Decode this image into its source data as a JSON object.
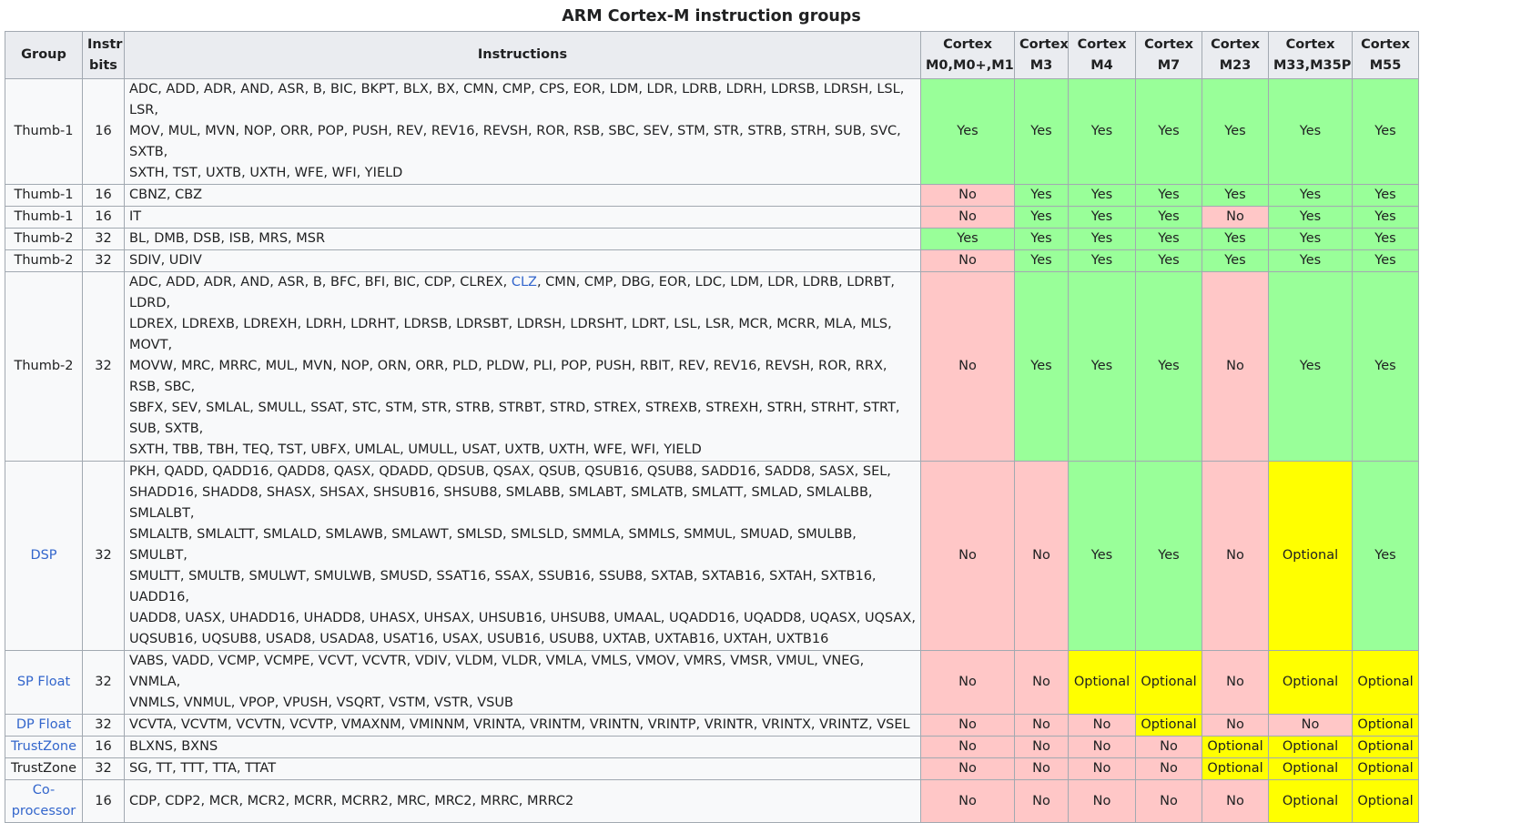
{
  "caption": "ARM Cortex-M instruction groups",
  "colors": {
    "yes": "#99ff99",
    "no": "#ffc7c7",
    "optional": "#ffff00",
    "header": "#eaecf0",
    "link": "#3366cc"
  },
  "headers": {
    "group": "Group",
    "bits": [
      "Instr",
      "bits"
    ],
    "instructions": "Instructions",
    "cores": [
      [
        "Cortex",
        "M0,M0+,M1"
      ],
      [
        "Cortex",
        "M3"
      ],
      [
        "Cortex",
        "M4"
      ],
      [
        "Cortex",
        "M7"
      ],
      [
        "Cortex",
        "M23"
      ],
      [
        "Cortex",
        "M33,M35P"
      ],
      [
        "Cortex",
        "M55"
      ]
    ]
  },
  "rows": [
    {
      "group": "Thumb-1",
      "group_link": false,
      "bits": "16",
      "instructions": [
        {
          "text": "ADC, ADD, ADR, AND, ASR, B, BIC, BKPT, BLX, BX, CMN, CMP, CPS, EOR, LDM, LDR, LDRB, LDRH, LDRSB, LDRSH, LSL, LSR,",
          "link": false
        },
        {
          "text": "MOV, MUL, MVN, NOP, ORR, POP, PUSH, REV, REV16, REVSH, ROR, RSB, SBC, SEV, STM, STR, STRB, STRH, SUB, SVC, SXTB,",
          "link": false
        },
        {
          "text": "SXTH, TST, UXTB, UXTH, WFE, WFI, YIELD",
          "link": false
        }
      ],
      "values": [
        "Yes",
        "Yes",
        "Yes",
        "Yes",
        "Yes",
        "Yes",
        "Yes"
      ]
    },
    {
      "group": "Thumb-1",
      "group_link": false,
      "bits": "16",
      "instructions": [
        {
          "text": "CBNZ, CBZ",
          "link": false
        }
      ],
      "values": [
        "No",
        "Yes",
        "Yes",
        "Yes",
        "Yes",
        "Yes",
        "Yes"
      ]
    },
    {
      "group": "Thumb-1",
      "group_link": false,
      "bits": "16",
      "instructions": [
        {
          "text": "IT",
          "link": false
        }
      ],
      "values": [
        "No",
        "Yes",
        "Yes",
        "Yes",
        "No",
        "Yes",
        "Yes"
      ]
    },
    {
      "group": "Thumb-2",
      "group_link": false,
      "bits": "32",
      "instructions": [
        {
          "text": "BL, DMB, DSB, ISB, MRS, MSR",
          "link": false
        }
      ],
      "values": [
        "Yes",
        "Yes",
        "Yes",
        "Yes",
        "Yes",
        "Yes",
        "Yes"
      ]
    },
    {
      "group": "Thumb-2",
      "group_link": false,
      "bits": "32",
      "instructions": [
        {
          "text": "SDIV, UDIV",
          "link": false
        }
      ],
      "values": [
        "No",
        "Yes",
        "Yes",
        "Yes",
        "Yes",
        "Yes",
        "Yes"
      ]
    },
    {
      "group": "Thumb-2",
      "group_link": false,
      "bits": "32",
      "instructions_segments": [
        [
          {
            "text": "ADC, ADD, ADR, AND, ASR, B, BFC, BFI, BIC, CDP, CLREX, ",
            "link": false
          },
          {
            "text": "CLZ",
            "link": true
          },
          {
            "text": ", CMN, CMP, DBG, EOR, LDC, LDM, LDR, LDRB, LDRBT, LDRD,",
            "link": false
          }
        ],
        [
          {
            "text": "LDREX, LDREXB, LDREXH, LDRH, LDRHT, LDRSB, LDRSBT, LDRSH, LDRSHT, LDRT, LSL, LSR, MCR, MCRR, MLA, MLS, MOVT,",
            "link": false
          }
        ],
        [
          {
            "text": "MOVW, MRC, MRRC, MUL, MVN, NOP, ORN, ORR, PLD, PLDW, PLI, POP, PUSH, RBIT, REV, REV16, REVSH, ROR, RRX, RSB, SBC,",
            "link": false
          }
        ],
        [
          {
            "text": "SBFX, SEV, SMLAL, SMULL, SSAT, STC, STM, STR, STRB, STRBT, STRD, STREX, STREXB, STREXH, STRH, STRHT, STRT, SUB, SXTB,",
            "link": false
          }
        ],
        [
          {
            "text": "SXTH, TBB, TBH, TEQ, TST, UBFX, UMLAL, UMULL, USAT, UXTB, UXTH, WFE, WFI, YIELD",
            "link": false
          }
        ]
      ],
      "values": [
        "No",
        "Yes",
        "Yes",
        "Yes",
        "No",
        "Yes",
        "Yes"
      ]
    },
    {
      "group": "DSP",
      "group_link": true,
      "bits": "32",
      "instructions": [
        {
          "text": "PKH, QADD, QADD16, QADD8, QASX, QDADD, QDSUB, QSAX, QSUB, QSUB16, QSUB8, SADD16, SADD8, SASX, SEL,",
          "link": false
        },
        {
          "text": "SHADD16, SHADD8, SHASX, SHSAX, SHSUB16, SHSUB8, SMLABB, SMLABT, SMLATB, SMLATT, SMLAD, SMLALBB, SMLALBT,",
          "link": false
        },
        {
          "text": "SMLALTB, SMLALTT, SMLALD, SMLAWB, SMLAWT, SMLSD, SMLSLD, SMMLA, SMMLS, SMMUL, SMUAD, SMULBB, SMULBT,",
          "link": false
        },
        {
          "text": "SMULTT, SMULTB, SMULWT, SMULWB, SMUSD, SSAT16, SSAX, SSUB16, SSUB8, SXTAB, SXTAB16, SXTAH, SXTB16, UADD16,",
          "link": false
        },
        {
          "text": "UADD8, UASX, UHADD16, UHADD8, UHASX, UHSAX, UHSUB16, UHSUB8, UMAAL, UQADD16, UQADD8, UQASX, UQSAX,",
          "link": false
        },
        {
          "text": "UQSUB16, UQSUB8, USAD8, USADA8, USAT16, USAX, USUB16, USUB8, UXTAB, UXTAB16, UXTAH, UXTB16",
          "link": false
        }
      ],
      "values": [
        "No",
        "No",
        "Yes",
        "Yes",
        "No",
        "Optional",
        "Yes"
      ]
    },
    {
      "group": "SP Float",
      "group_link": true,
      "bits": "32",
      "instructions": [
        {
          "text": "VABS, VADD, VCMP, VCMPE, VCVT, VCVTR, VDIV, VLDM, VLDR, VMLA, VMLS, VMOV, VMRS, VMSR, VMUL, VNEG, VNMLA,",
          "link": false
        },
        {
          "text": "VNMLS, VNMUL, VPOP, VPUSH, VSQRT, VSTM, VSTR, VSUB",
          "link": false
        }
      ],
      "values": [
        "No",
        "No",
        "Optional",
        "Optional",
        "No",
        "Optional",
        "Optional"
      ]
    },
    {
      "group": "DP Float",
      "group_link": true,
      "bits": "32",
      "instructions": [
        {
          "text": "VCVTA, VCVTM, VCVTN, VCVTP, VMAXNM, VMINNM, VRINTA, VRINTM, VRINTN, VRINTP, VRINTR, VRINTX, VRINTZ, VSEL",
          "link": false
        }
      ],
      "values": [
        "No",
        "No",
        "No",
        "Optional",
        "No",
        "No",
        "Optional"
      ]
    },
    {
      "group": "TrustZone",
      "group_link": true,
      "bits": "16",
      "instructions": [
        {
          "text": "BLXNS, BXNS",
          "link": false
        }
      ],
      "values": [
        "No",
        "No",
        "No",
        "No",
        "Optional",
        "Optional",
        "Optional"
      ]
    },
    {
      "group": "TrustZone",
      "group_link": false,
      "bits": "32",
      "instructions": [
        {
          "text": "SG, TT, TTT, TTA, TTAT",
          "link": false
        }
      ],
      "values": [
        "No",
        "No",
        "No",
        "No",
        "Optional",
        "Optional",
        "Optional"
      ]
    },
    {
      "group": "Co-processor",
      "group_lines": [
        "Co-",
        "processor"
      ],
      "group_link": true,
      "bits": "16",
      "instructions": [
        {
          "text": "CDP, CDP2, MCR, MCR2, MCRR, MCRR2, MRC, MRC2, MRRC, MRRC2",
          "link": false
        }
      ],
      "values": [
        "No",
        "No",
        "No",
        "No",
        "No",
        "Optional",
        "Optional"
      ]
    }
  ]
}
